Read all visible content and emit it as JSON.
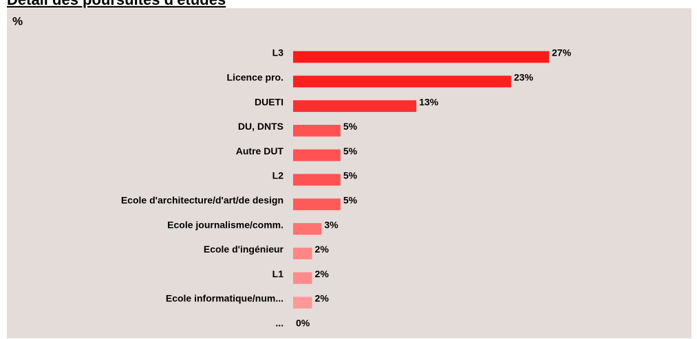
{
  "chart_data": {
    "type": "barh",
    "title": "Détail des poursuites d'études",
    "axis_label": "%",
    "categories": [
      "L3",
      "Licence pro.",
      "DUETI",
      "DU, DNTS",
      "Autre DUT",
      "L2",
      "Ecole d'architecture/d'art/de design",
      "Ecole journalisme/comm.",
      "Ecole d'ingénieur",
      "L1",
      "Ecole informatique/num...",
      "..."
    ],
    "values": [
      27,
      23,
      13,
      5,
      5,
      5,
      5,
      3,
      2,
      2,
      2,
      0
    ],
    "value_labels": [
      "27%",
      "23%",
      "13%",
      "5%",
      "5%",
      "5%",
      "5%",
      "3%",
      "2%",
      "2%",
      "2%",
      "0%"
    ],
    "colors": [
      "#ff1a1a",
      "#ff1f1f",
      "#fa3030",
      "#ff5353",
      "#ff5353",
      "#ff5353",
      "#ff5a5a",
      "#ff7272",
      "#ff8686",
      "#ff8c8c",
      "#ff9898",
      "#ffa0a0"
    ]
  }
}
